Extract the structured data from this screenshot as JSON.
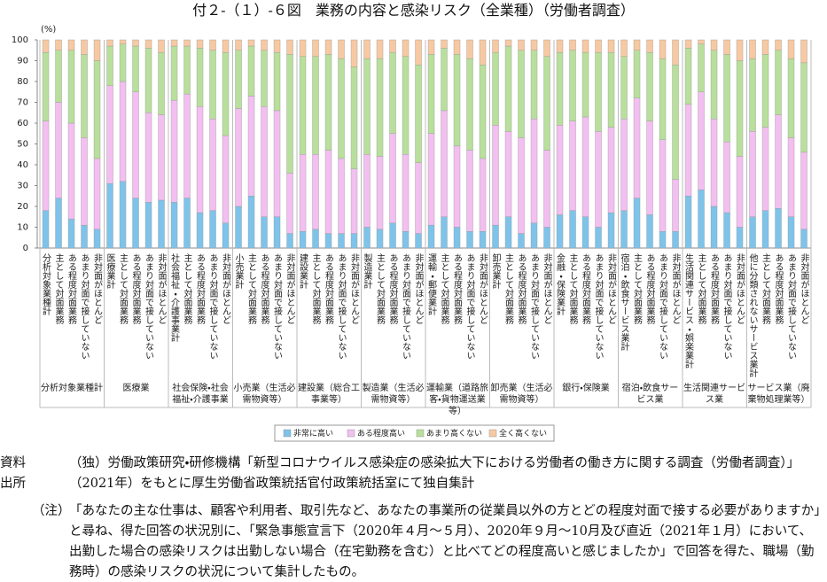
{
  "chart_data": {
    "type": "stacked_bar",
    "title": "付２-（１）-６図　業務の内容と感染リスク（全業種）（労働者調査）",
    "y_label": "(%)",
    "ylim": [
      0,
      100
    ],
    "yticks": [
      0,
      10,
      20,
      30,
      40,
      50,
      60,
      70,
      80,
      90,
      100
    ],
    "groups": [
      "分析対象業種計",
      "医療業",
      "社会保険・社会福祉・介護事業",
      "小売業（生活必需物資等）",
      "建設業（総合工事業等）",
      "製造業（生活必需物資等）",
      "運輸業（道路旅客・貨物運送業等）",
      "卸売業（生活必需物資等）",
      "銀行・保険業",
      "宿泊・飲食サービス業",
      "生活関連サービス業",
      "サービス業（廃棄物処理業等）"
    ],
    "categories": [
      "分析対象業種計",
      "主として対面業務",
      "ある程度対面業務",
      "あまり対面で接していない",
      "非対面がほとんど",
      "医療業計",
      "主として対面業務",
      "ある程度対面業務",
      "あまり対面で接していない",
      "非対面がほとんど",
      "社会福祉・介護事業計",
      "主として対面業務",
      "ある程度対面業務",
      "あまり対面で接していない",
      "非対面がほとんど",
      "小売業計",
      "主として対面業務",
      "ある程度対面業務",
      "あまり対面で接していない",
      "非対面がほとんど",
      "建設業計",
      "主として対面業務",
      "ある程度対面業務",
      "あまり対面で接していない",
      "非対面がほとんど",
      "製造業計",
      "主として対面業務",
      "ある程度対面業務",
      "あまり対面で接していない",
      "非対面がほとんど",
      "運輸・郵便業計",
      "主として対面業務",
      "ある程度対面業務",
      "あまり対面で接していない",
      "非対面がほとんど",
      "卸売業計",
      "主として対面業務",
      "ある程度対面業務",
      "あまり対面で接していない",
      "非対面がほとんど",
      "金融・保険業計",
      "主として対面業務",
      "ある程度対面業務",
      "あまり対面で接していない",
      "非対面がほとんど",
      "宿泊・飲食サービス業計",
      "主として対面業務",
      "ある程度対面業務",
      "あまり対面で接していない",
      "非対面がほとんど",
      "生活関連サービス・娯楽業計",
      "主として対面業務",
      "ある程度対面業務",
      "あまり対面で接していない",
      "非対面がほとんど",
      "他に分類されないサービス業計",
      "主として対面業務",
      "ある程度対面業務",
      "あまり対面で接していない",
      "非対面がほとんど"
    ],
    "series": [
      {
        "name": "非常に高い",
        "color": "#7ec3ea",
        "values": [
          18,
          24,
          14,
          11,
          9,
          31,
          32,
          24,
          22,
          23,
          22,
          24,
          17,
          18,
          12,
          20,
          25,
          15,
          15,
          7,
          8,
          9,
          7,
          7,
          7,
          10,
          9,
          12,
          8,
          7,
          11,
          15,
          10,
          8,
          8,
          11,
          15,
          7,
          12,
          10,
          16,
          18,
          15,
          10,
          17,
          18,
          24,
          16,
          8,
          8,
          25,
          28,
          20,
          17,
          10,
          15,
          18,
          19,
          15,
          9
        ]
      },
      {
        "name": "ある程度高い",
        "color": "#f2bff0",
        "values": [
          43,
          46,
          46,
          42,
          34,
          47,
          48,
          51,
          43,
          41,
          49,
          50,
          51,
          44,
          42,
          47,
          48,
          53,
          51,
          29,
          37,
          36,
          40,
          36,
          31,
          35,
          35,
          43,
          37,
          34,
          44,
          51,
          39,
          39,
          35,
          48,
          41,
          46,
          50,
          37,
          43,
          43,
          48,
          46,
          41,
          44,
          48,
          45,
          44,
          25,
          44,
          47,
          42,
          34,
          34,
          41,
          40,
          45,
          38,
          37
        ]
      },
      {
        "name": "あまり高くない",
        "color": "#b8df9c",
        "values": [
          33,
          25,
          35,
          40,
          47,
          19,
          18,
          22,
          31,
          30,
          26,
          23,
          28,
          33,
          40,
          28,
          24,
          27,
          28,
          57,
          47,
          47,
          46,
          48,
          49,
          46,
          47,
          39,
          47,
          47,
          38,
          30,
          44,
          44,
          45,
          35,
          41,
          42,
          33,
          45,
          35,
          34,
          31,
          38,
          36,
          30,
          23,
          33,
          39,
          55,
          27,
          23,
          33,
          42,
          46,
          35,
          35,
          31,
          38,
          43
        ]
      },
      {
        "name": "全く高くない",
        "color": "#f7c9a2",
        "values": [
          6,
          5,
          5,
          7,
          10,
          3,
          2,
          3,
          4,
          6,
          3,
          3,
          4,
          5,
          6,
          5,
          3,
          5,
          6,
          7,
          8,
          8,
          7,
          9,
          13,
          9,
          9,
          6,
          8,
          12,
          7,
          4,
          7,
          9,
          12,
          6,
          3,
          5,
          5,
          8,
          6,
          5,
          6,
          6,
          6,
          8,
          5,
          6,
          9,
          12,
          4,
          2,
          5,
          7,
          10,
          9,
          7,
          5,
          9,
          11
        ]
      }
    ]
  },
  "footnotes": {
    "source_label": "資料出所",
    "source": "（独）労働政策研究・研修機構「新型コロナウイルス感染症の感染拡大下における労働者の働き方に関する調査（労働者調査）」（2021年）をもとに厚生労働省政策統括官付政策統括室にて独自集計",
    "note_label": "（注）",
    "note": "「あなたの主な仕事は、顧客や利用者、取引先など、あなたの事業所の従業員以外の方とどの程度対面で接する必要がありますか」と尋ね、得た回答の状況別に、「緊急事態宣言下（2020年４月～５月）、2020年９月～10月及び直近（2021年１月）において、出勤した場合の感染リスクは出勤しない場合（在宅勤務を含む）と比べてどの程度高いと感じましたか」で回答を得た、職場（勤務時）の感染リスクの状況について集計したもの。"
  }
}
